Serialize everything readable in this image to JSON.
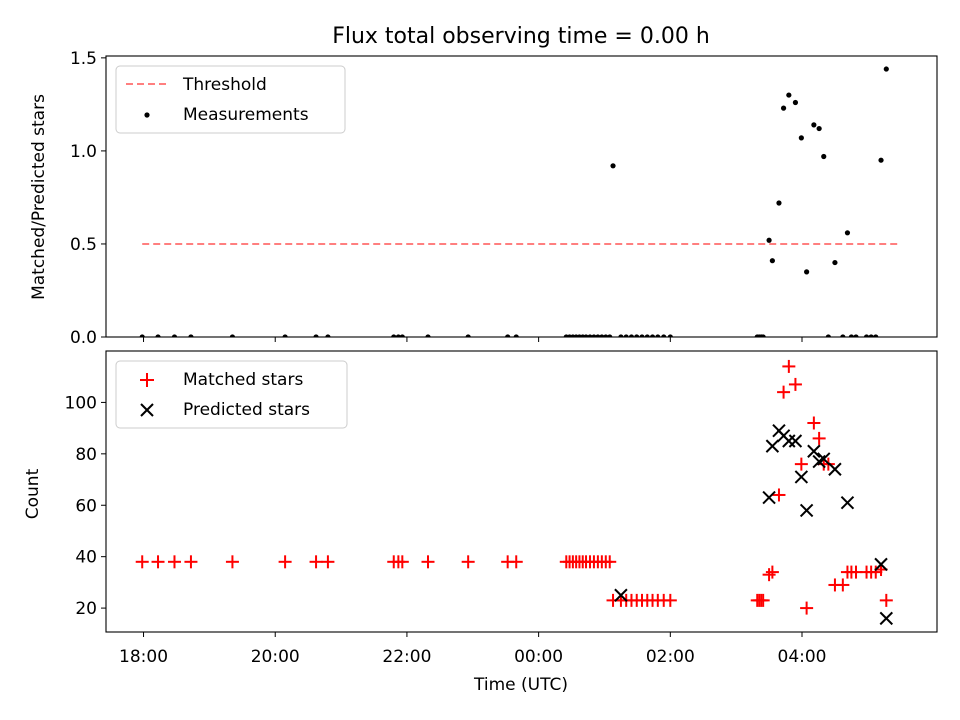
{
  "colors": {
    "threshold": "#ff7f7f",
    "measurement": "#000000",
    "matched": "#ff0000",
    "predicted": "#000000",
    "axes": "#000000",
    "legend_border": "#cccccc"
  },
  "x_tick_labels": [
    "18:00",
    "20:00",
    "22:00",
    "00:00",
    "02:00",
    "04:00"
  ],
  "chart_data": [
    {
      "type": "scatter",
      "title": "Flux total observing time = 0.00 h",
      "xlabel": "",
      "ylabel": "Matched/Predicted stars",
      "x_unit": "hours since 18:00 UTC",
      "xlim": [
        -0.57,
        12.05
      ],
      "ylim": [
        0,
        1.51
      ],
      "yticks": [
        0,
        0.5,
        1.0,
        1.5
      ],
      "ytick_labels": [
        "0.0",
        "0.5",
        "1.0",
        "1.5"
      ],
      "legend": [
        "Threshold",
        "Measurements"
      ],
      "legend_position": "upper-left",
      "threshold": {
        "name": "Threshold",
        "y": 0.5,
        "x_range": [
          -0.02,
          11.5
        ]
      },
      "series": [
        {
          "name": "Measurements",
          "x": [
            -0.02,
            0.22,
            0.47,
            0.72,
            1.35,
            2.15,
            2.62,
            2.8,
            3.8,
            3.87,
            3.93,
            4.32,
            4.93,
            5.53,
            5.66,
            6.42,
            6.47,
            6.52,
            6.57,
            6.62,
            6.67,
            6.72,
            6.78,
            6.84,
            6.9,
            6.96,
            7.02,
            7.08,
            7.13,
            7.25,
            7.33,
            7.41,
            7.49,
            7.57,
            7.65,
            7.73,
            7.81,
            7.9,
            8.0,
            9.32,
            9.35,
            9.38,
            9.41,
            9.5,
            9.55,
            9.65,
            9.72,
            9.8,
            9.9,
            9.99,
            10.07,
            10.18,
            10.26,
            10.33,
            10.4,
            10.5,
            10.62,
            10.69,
            10.75,
            10.82,
            10.98,
            11.05,
            11.12,
            11.2,
            11.28
          ],
          "y": [
            0,
            0,
            0,
            0,
            0,
            0,
            0,
            0,
            0,
            0,
            0,
            0,
            0,
            0,
            0,
            0,
            0,
            0,
            0,
            0,
            0,
            0,
            0,
            0,
            0,
            0,
            0,
            0,
            0.92,
            0,
            0,
            0,
            0,
            0,
            0,
            0,
            0,
            0,
            0,
            0,
            0,
            0,
            0,
            0.52,
            0.41,
            0.72,
            1.23,
            1.3,
            1.26,
            1.07,
            0.35,
            1.14,
            1.12,
            0.97,
            0,
            0.4,
            0,
            0.56,
            0,
            0,
            0,
            0,
            0,
            0.95,
            1.44
          ]
        }
      ]
    },
    {
      "type": "scatter",
      "title": "",
      "xlabel": "Time (UTC)",
      "ylabel": "Count",
      "x_unit": "hours since 18:00 UTC",
      "xlim": [
        -0.57,
        12.05
      ],
      "ylim": [
        10.7,
        120
      ],
      "yticks": [
        20,
        40,
        60,
        80,
        100
      ],
      "ytick_labels": [
        "20",
        "40",
        "60",
        "80",
        "100"
      ],
      "legend": [
        "Matched stars",
        "Predicted stars"
      ],
      "legend_position": "upper-left",
      "series": [
        {
          "name": "Matched stars",
          "marker": "+",
          "x": [
            -0.02,
            0.22,
            0.47,
            0.72,
            1.35,
            2.15,
            2.62,
            2.8,
            3.8,
            3.87,
            3.93,
            4.32,
            4.93,
            5.53,
            5.66,
            6.42,
            6.47,
            6.52,
            6.57,
            6.62,
            6.67,
            6.72,
            6.78,
            6.84,
            6.9,
            6.96,
            7.02,
            7.08,
            7.13,
            7.25,
            7.33,
            7.41,
            7.49,
            7.57,
            7.65,
            7.73,
            7.81,
            7.9,
            8.0,
            9.32,
            9.35,
            9.38,
            9.41,
            9.5,
            9.55,
            9.65,
            9.72,
            9.8,
            9.9,
            9.99,
            10.07,
            10.18,
            10.26,
            10.33,
            10.4,
            10.5,
            10.62,
            10.69,
            10.75,
            10.82,
            10.98,
            11.05,
            11.12,
            11.2,
            11.28
          ],
          "y": [
            38,
            38,
            38,
            38,
            38,
            38,
            38,
            38,
            38,
            38,
            38,
            38,
            38,
            38,
            38,
            38,
            38,
            38,
            38,
            38,
            38,
            38,
            38,
            38,
            38,
            38,
            38,
            38,
            23,
            23,
            23,
            23,
            23,
            23,
            23,
            23,
            23,
            23,
            23,
            23,
            23,
            23,
            23,
            33,
            34,
            64,
            104,
            114,
            107,
            76,
            20,
            92,
            86,
            76,
            76,
            29,
            29,
            34,
            34,
            34,
            34,
            34,
            34,
            35,
            23
          ]
        },
        {
          "name": "Predicted stars",
          "marker": "x",
          "x": [
            7.25,
            9.5,
            9.55,
            9.65,
            9.72,
            9.8,
            9.9,
            9.99,
            10.07,
            10.18,
            10.26,
            10.33,
            10.5,
            10.69,
            11.2,
            11.28
          ],
          "y": [
            25,
            63,
            83,
            89,
            87,
            85,
            85,
            71,
            58,
            81,
            77,
            78,
            74,
            61,
            37,
            16
          ]
        }
      ]
    }
  ]
}
